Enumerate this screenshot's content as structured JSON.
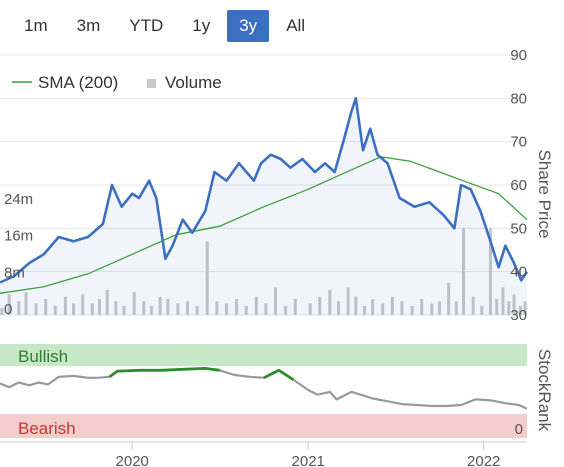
{
  "range_selector": {
    "buttons": [
      {
        "label": "1m",
        "active": false
      },
      {
        "label": "3m",
        "active": false
      },
      {
        "label": "YTD",
        "active": false
      },
      {
        "label": "1y",
        "active": false
      },
      {
        "label": "3y",
        "active": true
      },
      {
        "label": "All",
        "active": false
      }
    ]
  },
  "colors": {
    "price_line": "#3b6fc0",
    "sma_line": "#3aa03a",
    "volume_bar": "#c8c8c8",
    "bullish_band": "#c6e8c6",
    "bearish_band": "#f4cccc",
    "bullish_text": "#2e7d32",
    "bearish_text": "#c0392b",
    "stockrank_line": "#999999",
    "stockrank_bullish_line": "#2e8b2e",
    "active_button": "#3b6fc0"
  },
  "chart_data": {
    "type": "line",
    "title": "",
    "price_axis": {
      "title": "Share Price",
      "ticks": [
        "90",
        "80",
        "70",
        "60",
        "50",
        "40",
        "30"
      ],
      "range": [
        30,
        90
      ]
    },
    "volume_axis": {
      "ticks": [
        "24m",
        "16m",
        "8m",
        "0"
      ],
      "range": [
        0,
        24
      ]
    },
    "stockrank_axis": {
      "title": "StockRank",
      "ticks": [
        "0"
      ],
      "range": [
        0,
        100
      ]
    },
    "x_axis": {
      "ticks": [
        "2020",
        "2021",
        "2022"
      ],
      "range": [
        "2019-04-01",
        "2022-04-01"
      ]
    },
    "legend": {
      "items": [
        {
          "label": "SMA (200)"
        },
        {
          "label": "Volume"
        }
      ],
      "position": "top-left"
    },
    "bands": {
      "bullish_label": "Bullish",
      "bearish_label": "Bearish"
    },
    "series": [
      {
        "name": "Price",
        "points": [
          [
            "2019-04-01",
            37.5
          ],
          [
            "2019-05-01",
            39
          ],
          [
            "2019-06-01",
            42
          ],
          [
            "2019-07-01",
            44
          ],
          [
            "2019-08-01",
            48
          ],
          [
            "2019-09-01",
            47
          ],
          [
            "2019-10-01",
            48
          ],
          [
            "2019-11-01",
            51
          ],
          [
            "2019-11-20",
            60
          ],
          [
            "2019-12-10",
            55
          ],
          [
            "2020-01-01",
            58
          ],
          [
            "2020-01-15",
            57
          ],
          [
            "2020-02-05",
            61
          ],
          [
            "2020-02-20",
            57
          ],
          [
            "2020-03-10",
            43
          ],
          [
            "2020-03-25",
            46
          ],
          [
            "2020-04-15",
            52
          ],
          [
            "2020-05-05",
            49
          ],
          [
            "2020-06-01",
            54
          ],
          [
            "2020-06-20",
            63
          ],
          [
            "2020-07-15",
            61
          ],
          [
            "2020-08-10",
            65
          ],
          [
            "2020-09-10",
            61
          ],
          [
            "2020-09-25",
            65
          ],
          [
            "2020-10-15",
            67
          ],
          [
            "2020-11-05",
            66
          ],
          [
            "2020-11-25",
            64
          ],
          [
            "2020-12-20",
            66
          ],
          [
            "2021-01-15",
            63
          ],
          [
            "2021-02-05",
            65
          ],
          [
            "2021-02-25",
            63
          ],
          [
            "2021-03-15",
            70
          ],
          [
            "2021-04-01",
            77
          ],
          [
            "2021-04-10",
            80
          ],
          [
            "2021-04-25",
            68
          ],
          [
            "2021-05-10",
            73
          ],
          [
            "2021-05-25",
            67
          ],
          [
            "2021-06-15",
            65
          ],
          [
            "2021-07-10",
            57
          ],
          [
            "2021-08-10",
            55
          ],
          [
            "2021-09-10",
            56
          ],
          [
            "2021-10-10",
            53
          ],
          [
            "2021-11-01",
            50
          ],
          [
            "2021-11-15",
            60
          ],
          [
            "2021-12-05",
            59
          ],
          [
            "2021-12-25",
            54
          ],
          [
            "2022-01-15",
            47
          ],
          [
            "2022-02-01",
            41
          ],
          [
            "2022-02-15",
            46
          ],
          [
            "2022-03-05",
            42
          ],
          [
            "2022-03-20",
            38
          ],
          [
            "2022-04-01",
            40
          ]
        ]
      },
      {
        "name": "SMA (200)",
        "points": [
          [
            "2019-04-01",
            35
          ],
          [
            "2019-07-01",
            36.5
          ],
          [
            "2019-10-01",
            39.5
          ],
          [
            "2020-01-01",
            44
          ],
          [
            "2020-04-01",
            48.5
          ],
          [
            "2020-07-01",
            50.5
          ],
          [
            "2020-10-01",
            55
          ],
          [
            "2021-01-01",
            59
          ],
          [
            "2021-04-01",
            63.5
          ],
          [
            "2021-06-01",
            66.5
          ],
          [
            "2021-08-01",
            65.5
          ],
          [
            "2021-10-01",
            63
          ],
          [
            "2021-12-01",
            60.5
          ],
          [
            "2022-02-01",
            58
          ],
          [
            "2022-04-01",
            52
          ]
        ]
      },
      {
        "name": "Volume",
        "unit": "m",
        "points": [
          [
            "2019-04-05",
            1.5
          ],
          [
            "2019-04-20",
            4.5
          ],
          [
            "2019-05-10",
            3
          ],
          [
            "2019-05-25",
            5
          ],
          [
            "2019-06-15",
            2.5
          ],
          [
            "2019-07-05",
            3.5
          ],
          [
            "2019-07-25",
            2
          ],
          [
            "2019-08-15",
            4
          ],
          [
            "2019-09-01",
            2.5
          ],
          [
            "2019-09-20",
            4.5
          ],
          [
            "2019-10-10",
            2.5
          ],
          [
            "2019-10-25",
            3.5
          ],
          [
            "2019-11-10",
            5.5
          ],
          [
            "2019-11-28",
            3
          ],
          [
            "2019-12-15",
            2
          ],
          [
            "2020-01-05",
            5
          ],
          [
            "2020-01-25",
            3
          ],
          [
            "2020-02-10",
            2
          ],
          [
            "2020-02-28",
            4
          ],
          [
            "2020-03-15",
            3.5
          ],
          [
            "2020-04-05",
            2.5
          ],
          [
            "2020-04-25",
            3
          ],
          [
            "2020-05-15",
            2
          ],
          [
            "2020-06-05",
            16
          ],
          [
            "2020-06-25",
            3
          ],
          [
            "2020-07-15",
            2.5
          ],
          [
            "2020-08-05",
            3.5
          ],
          [
            "2020-08-25",
            2
          ],
          [
            "2020-09-15",
            4
          ],
          [
            "2020-10-05",
            2.5
          ],
          [
            "2020-10-25",
            6
          ],
          [
            "2020-11-15",
            2
          ],
          [
            "2020-12-05",
            3.5
          ],
          [
            "2021-01-05",
            2.5
          ],
          [
            "2021-01-25",
            4
          ],
          [
            "2021-02-15",
            5.5
          ],
          [
            "2021-03-05",
            3
          ],
          [
            "2021-03-25",
            6
          ],
          [
            "2021-04-10",
            4
          ],
          [
            "2021-04-28",
            2
          ],
          [
            "2021-05-15",
            3.5
          ],
          [
            "2021-06-05",
            2.5
          ],
          [
            "2021-06-25",
            4
          ],
          [
            "2021-07-15",
            3
          ],
          [
            "2021-08-05",
            2
          ],
          [
            "2021-08-25",
            3.5
          ],
          [
            "2021-09-15",
            2.5
          ],
          [
            "2021-10-01",
            3
          ],
          [
            "2021-10-20",
            7
          ],
          [
            "2021-11-05",
            3
          ],
          [
            "2021-11-20",
            19
          ],
          [
            "2021-12-10",
            4
          ],
          [
            "2021-12-28",
            2
          ],
          [
            "2022-01-15",
            19
          ],
          [
            "2022-01-28",
            3.5
          ],
          [
            "2022-02-10",
            6
          ],
          [
            "2022-02-22",
            3
          ],
          [
            "2022-03-05",
            4.5
          ],
          [
            "2022-03-18",
            2
          ],
          [
            "2022-03-28",
            3
          ]
        ]
      },
      {
        "name": "StockRank",
        "points": [
          [
            "2019-04-01",
            57
          ],
          [
            "2019-04-20",
            53
          ],
          [
            "2019-05-10",
            58
          ],
          [
            "2019-06-01",
            55
          ],
          [
            "2019-06-20",
            58
          ],
          [
            "2019-07-10",
            56
          ],
          [
            "2019-08-01",
            64
          ],
          [
            "2019-09-01",
            65
          ],
          [
            "2019-10-01",
            63
          ],
          [
            "2019-10-20",
            63
          ],
          [
            "2019-11-15",
            64
          ],
          [
            "2019-12-01",
            70
          ],
          [
            "2020-01-15",
            71
          ],
          [
            "2020-03-01",
            71
          ],
          [
            "2020-04-15",
            72
          ],
          [
            "2020-06-01",
            73
          ],
          [
            "2020-07-01",
            71
          ],
          [
            "2020-08-01",
            66
          ],
          [
            "2020-09-01",
            64
          ],
          [
            "2020-10-01",
            63
          ],
          [
            "2020-11-01",
            71
          ],
          [
            "2020-12-01",
            61
          ],
          [
            "2021-01-01",
            50
          ],
          [
            "2021-01-20",
            45
          ],
          [
            "2021-02-15",
            48
          ],
          [
            "2021-03-01",
            40
          ],
          [
            "2021-04-01",
            48
          ],
          [
            "2021-04-20",
            45
          ],
          [
            "2021-05-15",
            41
          ],
          [
            "2021-06-15",
            38
          ],
          [
            "2021-07-15",
            35
          ],
          [
            "2021-08-15",
            34
          ],
          [
            "2021-09-15",
            33
          ],
          [
            "2021-10-15",
            33
          ],
          [
            "2021-11-15",
            34
          ],
          [
            "2021-12-15",
            40
          ],
          [
            "2022-01-15",
            39
          ],
          [
            "2022-02-15",
            36
          ],
          [
            "2022-03-15",
            34
          ],
          [
            "2022-04-01",
            30
          ]
        ]
      }
    ],
    "bullish_segments": [
      [
        "2019-11-15",
        "2020-07-01"
      ],
      [
        "2020-10-01",
        "2020-12-01"
      ]
    ]
  }
}
